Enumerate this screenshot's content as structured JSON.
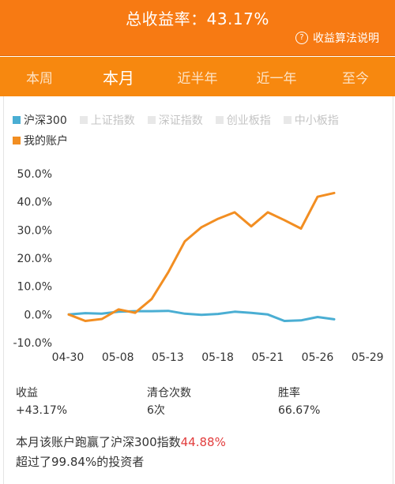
{
  "header": {
    "title": "总收益率：43.17%",
    "help_label": "收益算法说明",
    "help_icon": "question-circle-icon"
  },
  "tabs": [
    {
      "label": "本周",
      "active": false
    },
    {
      "label": "本月",
      "active": true
    },
    {
      "label": "近半年",
      "active": false
    },
    {
      "label": "近一年",
      "active": false
    },
    {
      "label": "至今",
      "active": false
    }
  ],
  "legend": [
    {
      "label": "沪深300",
      "color": "#4aaed3",
      "on": true
    },
    {
      "label": "上证指数",
      "color": "#e8e8e8",
      "on": false
    },
    {
      "label": "深证指数",
      "color": "#e8e8e8",
      "on": false
    },
    {
      "label": "创业板指",
      "color": "#e8e8e8",
      "on": false
    },
    {
      "label": "中小板指",
      "color": "#e8e8e8",
      "on": false
    },
    {
      "label": "我的账户",
      "color": "#f28e22",
      "on": true
    }
  ],
  "chart_data": {
    "type": "line",
    "y_ticks": [
      "50.0%",
      "40.0%",
      "30.0%",
      "20.0%",
      "10.0%",
      "0.0%",
      "-10.0%"
    ],
    "x_ticks": [
      "04-30",
      "05-08",
      "05-13",
      "05-18",
      "05-21",
      "05-26",
      "05-29"
    ],
    "ylim": [
      -10,
      50
    ],
    "series": [
      {
        "name": "沪深300",
        "color": "#4aaed3",
        "values": [
          0,
          0.5,
          0.3,
          1.0,
          1.2,
          1.2,
          1.3,
          0.3,
          -0.1,
          0.2,
          1.0,
          0.6,
          0,
          -2.3,
          -2.1,
          -0.9,
          -1.7
        ]
      },
      {
        "name": "我的账户",
        "color": "#f28e22",
        "values": [
          0,
          -2.3,
          -1.6,
          1.8,
          0.6,
          5.5,
          15,
          26,
          31,
          34,
          36.3,
          31.3,
          36.3,
          33.5,
          30.5,
          41.8,
          43.17
        ]
      }
    ]
  },
  "stats": [
    {
      "label": "收益",
      "value": "+43.17%"
    },
    {
      "label": "清仓次数",
      "value": "6次"
    },
    {
      "label": "胜率",
      "value": "66.67%"
    }
  ],
  "summary": {
    "line1_prefix": "本月该账户跑赢了沪深300指数",
    "line1_value": "44.88%",
    "line2": "超过了99.84%的投资者"
  }
}
